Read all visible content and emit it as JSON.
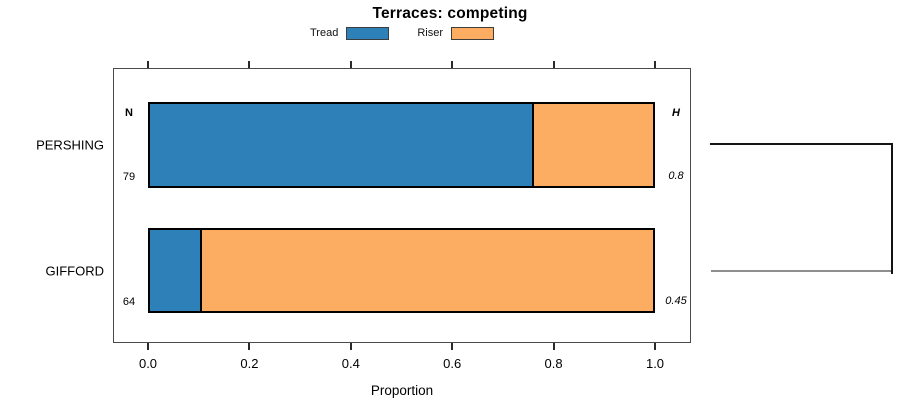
{
  "title": "Terraces: competing",
  "legend": {
    "items": [
      {
        "label": "Tread",
        "color": "#2e80b9"
      },
      {
        "label": "Riser",
        "color": "#fcad61"
      }
    ]
  },
  "chart_data": {
    "type": "bar",
    "subtype": "horizontal-stacked-proportion",
    "title": "Terraces: competing",
    "xlabel": "Proportion",
    "xlim": [
      0,
      1
    ],
    "x_ticks": [
      0,
      0.2,
      0.4,
      0.6,
      0.8,
      1.0
    ],
    "x_tick_labels": [
      "0.0",
      "0.2",
      "0.4",
      "0.6",
      "0.8",
      "1.0"
    ],
    "grid": false,
    "legend_position": "top",
    "categories": [
      "PERSHING",
      "GIFFORD"
    ],
    "series": [
      {
        "name": "Tread",
        "color": "#2e80b9",
        "values": [
          0.76,
          0.1
        ]
      },
      {
        "name": "Riser",
        "color": "#fcad61",
        "values": [
          0.24,
          0.9
        ]
      }
    ],
    "row_annotations": {
      "left_header": "N",
      "right_header": "H",
      "n_values": [
        "79",
        "64"
      ],
      "h_values": [
        "0.8",
        "0.45"
      ]
    },
    "dendrogram": {
      "joined_categories": [
        "PERSHING",
        "GIFFORD"
      ]
    }
  }
}
